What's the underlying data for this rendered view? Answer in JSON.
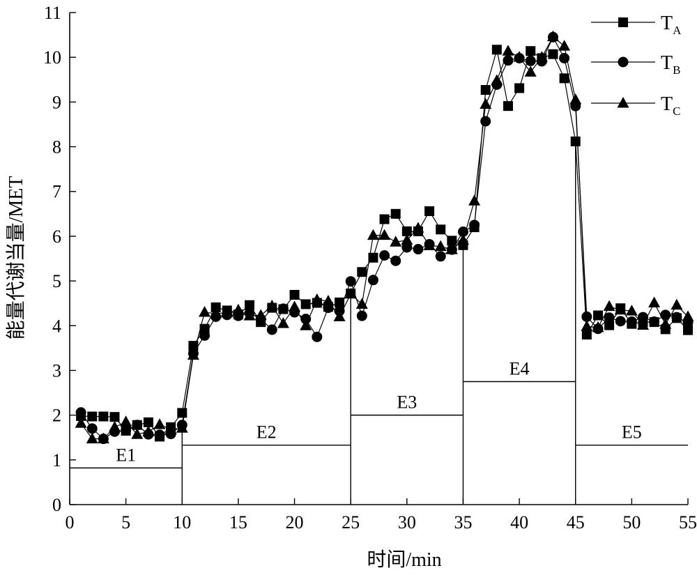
{
  "chart_data": {
    "type": "line",
    "xlabel": "时间/min",
    "ylabel": "能量代谢当量/MET",
    "xlim": [
      0,
      55
    ],
    "ylim": [
      0,
      11
    ],
    "xticks": [
      "0",
      "5",
      "10",
      "15",
      "20",
      "25",
      "30",
      "35",
      "40",
      "45",
      "50",
      "55"
    ],
    "yticks": [
      "0",
      "1",
      "2",
      "3",
      "4",
      "5",
      "6",
      "7",
      "8",
      "9",
      "10",
      "11"
    ],
    "grid": false,
    "legend_position": "top-right",
    "x": [
      1,
      2,
      3,
      4,
      5,
      6,
      7,
      8,
      9,
      10,
      11,
      12,
      13,
      14,
      15,
      16,
      17,
      18,
      19,
      20,
      21,
      22,
      23,
      24,
      25,
      26,
      27,
      28,
      29,
      30,
      31,
      32,
      33,
      34,
      35,
      36,
      37,
      38,
      39,
      40,
      41,
      42,
      43,
      44,
      45,
      46,
      47,
      48,
      49,
      50,
      51,
      52,
      53,
      54,
      55
    ],
    "series": [
      {
        "name": "T_A",
        "label_main": "T",
        "label_sub": "A",
        "marker": "square",
        "values": [
          1.98,
          1.97,
          1.97,
          1.96,
          1.65,
          1.78,
          1.84,
          1.52,
          1.73,
          2.05,
          3.55,
          3.93,
          4.41,
          4.34,
          4.25,
          4.46,
          4.08,
          4.4,
          4.37,
          4.69,
          4.48,
          4.51,
          4.42,
          4.52,
          4.72,
          5.2,
          5.52,
          6.38,
          6.5,
          6.11,
          6.11,
          6.56,
          6.15,
          5.9,
          5.8,
          6.2,
          9.27,
          10.17,
          8.91,
          9.31,
          10.14,
          9.98,
          10.07,
          9.53,
          8.12,
          3.8,
          4.23,
          4.01,
          4.39,
          4.04,
          4.08,
          4.08,
          3.92,
          4.17,
          3.9
        ]
      },
      {
        "name": "T_B",
        "label_main": "T",
        "label_sub": "B",
        "marker": "circle",
        "values": [
          2.06,
          1.7,
          1.47,
          1.63,
          1.66,
          1.78,
          1.57,
          1.56,
          1.58,
          1.78,
          3.38,
          3.78,
          4.2,
          4.24,
          4.22,
          4.28,
          4.15,
          3.91,
          4.38,
          4.3,
          4.15,
          3.75,
          4.4,
          4.33,
          4.99,
          4.22,
          5.02,
          5.57,
          5.45,
          5.75,
          5.71,
          5.82,
          5.55,
          5.7,
          6.1,
          6.25,
          8.57,
          9.39,
          9.93,
          9.98,
          9.92,
          9.91,
          10.45,
          9.98,
          8.91,
          4.2,
          3.93,
          4.18,
          4.1,
          4.09,
          4.19,
          4.09,
          4.24,
          4.19,
          4.07
        ]
      },
      {
        "name": "T_C",
        "label_main": "T",
        "label_sub": "C",
        "marker": "triangle",
        "values": [
          1.82,
          1.47,
          1.47,
          1.73,
          1.85,
          1.57,
          1.63,
          1.79,
          1.68,
          1.71,
          3.34,
          4.3,
          4.27,
          4.29,
          4.35,
          4.22,
          4.23,
          4.44,
          4.05,
          4.42,
          4.0,
          4.58,
          4.55,
          4.2,
          4.71,
          4.48,
          6.02,
          6.02,
          5.87,
          5.91,
          6.18,
          5.79,
          5.77,
          5.7,
          5.91,
          6.79,
          8.95,
          9.48,
          10.14,
          10.0,
          9.67,
          10.0,
          10.46,
          10.25,
          9.05,
          3.98,
          3.96,
          4.43,
          4.35,
          4.33,
          4.01,
          4.51,
          4.03,
          4.46,
          4.2
        ]
      }
    ],
    "regions": [
      {
        "label": "E1",
        "x_start": 0,
        "x_end": 10,
        "value": 0.82
      },
      {
        "label": "E2",
        "x_start": 10,
        "x_end": 25,
        "value": 1.33
      },
      {
        "label": "E3",
        "x_start": 25,
        "x_end": 35,
        "value": 2.0
      },
      {
        "label": "E4",
        "x_start": 35,
        "x_end": 45,
        "value": 2.75
      },
      {
        "label": "E5",
        "x_start": 45,
        "x_end": 55,
        "value": 1.33
      }
    ]
  }
}
